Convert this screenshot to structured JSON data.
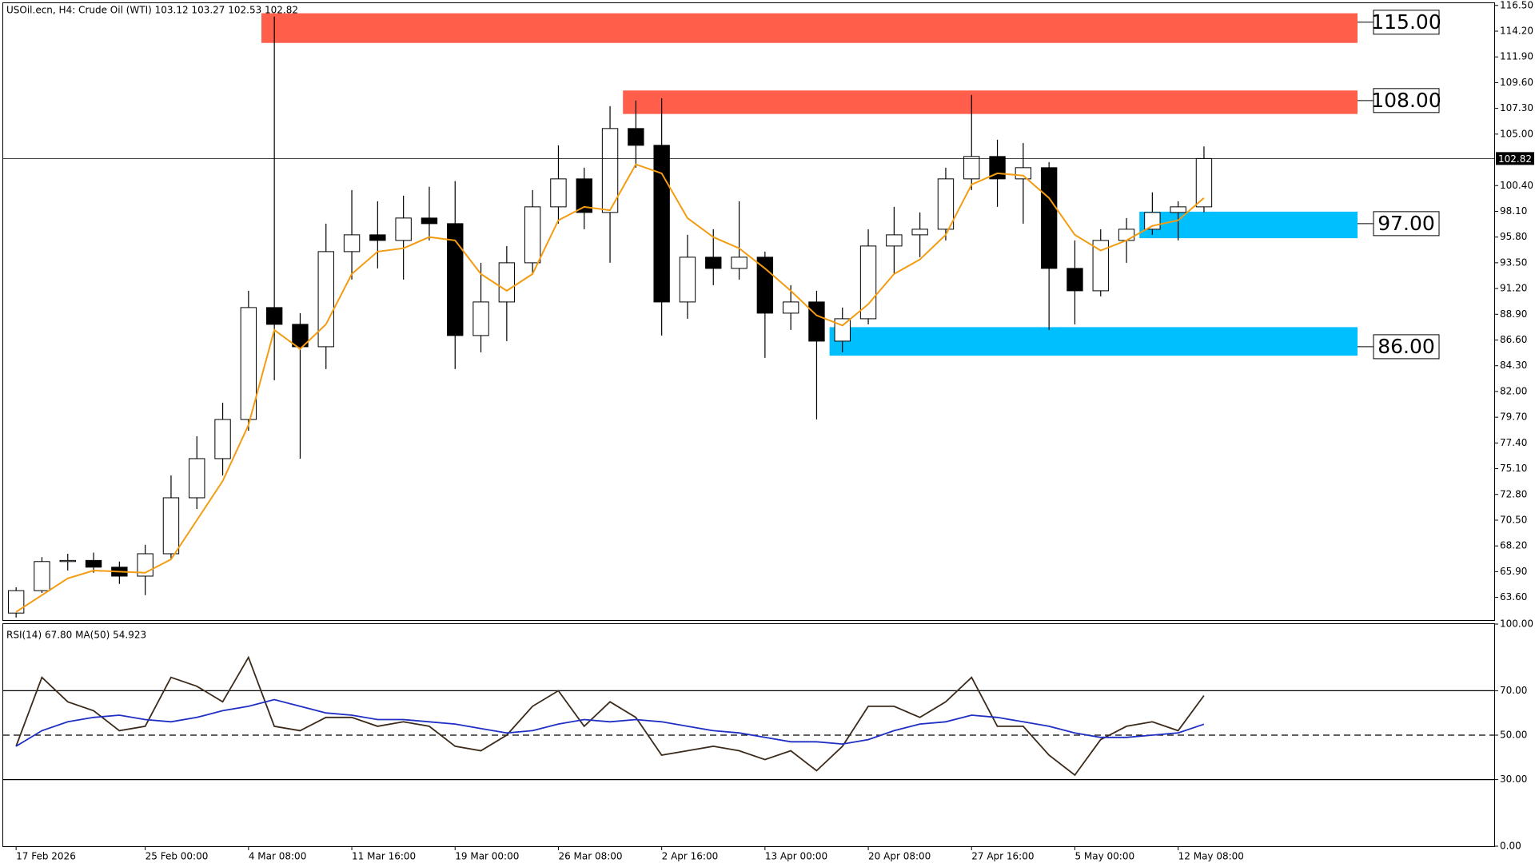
{
  "chart_data": [
    {
      "type": "candlestick",
      "title": "USOil.ecn, H4:  Crude Oil (WTI)  103.12 103.27 102.53 102.82",
      "categories": [
        "17 Feb 2026",
        null,
        null,
        null,
        null,
        "25 Feb 00:00",
        null,
        null,
        null,
        "4 Mar 08:00",
        null,
        null,
        null,
        "11 Mar 16:00",
        null,
        null,
        null,
        "19 Mar 00:00",
        null,
        null,
        null,
        "26 Mar 08:00",
        null,
        null,
        null,
        "2 Apr 16:00",
        null,
        null,
        null,
        "13 Apr 00:00",
        null,
        null,
        null,
        "20 Apr 08:00",
        null,
        null,
        null,
        "27 Apr 16:00",
        null,
        null,
        null,
        "5 May 00:00",
        null,
        null,
        null,
        "12 May 08:00",
        null
      ],
      "open": [
        62.2,
        64.2,
        66.8,
        66.9,
        66.3,
        65.5,
        67.5,
        72.5,
        76,
        79.5,
        89.5,
        88,
        86,
        94.5,
        96,
        95.5,
        97.5,
        97,
        87,
        90,
        93.5,
        98.5,
        101,
        98,
        105.5,
        104,
        90,
        94,
        93,
        94,
        89,
        90,
        86.5,
        88.5,
        95,
        96,
        96.5,
        101,
        103,
        101,
        102,
        93,
        91,
        95.5,
        96.5,
        98,
        98.5
      ],
      "high": [
        64.5,
        67.2,
        67.5,
        67.6,
        66.8,
        68.3,
        74.5,
        78,
        81,
        91,
        115.5,
        89,
        97,
        100,
        99,
        99.5,
        100.3,
        100.8,
        93.5,
        95,
        100,
        104,
        102,
        107.5,
        108,
        108.2,
        96,
        96.5,
        99,
        94.5,
        91.5,
        91,
        89.5,
        96.5,
        98.5,
        98,
        102,
        108.5,
        104.5,
        104.2,
        102.5,
        95.5,
        96.5,
        97.5,
        99.8,
        99,
        103.9
      ],
      "low": [
        61.8,
        64,
        66,
        65.8,
        64.8,
        63.8,
        67,
        71.5,
        74.5,
        78.5,
        83,
        76,
        84,
        92,
        93,
        92,
        95.5,
        84,
        85.5,
        86.5,
        92.5,
        97,
        96.5,
        93.5,
        102,
        87,
        88.5,
        91.5,
        92,
        85,
        87.5,
        79.5,
        85.5,
        88,
        92.5,
        94,
        95.5,
        100,
        98.5,
        97,
        87.5,
        88,
        90.5,
        93.5,
        96,
        95.5,
        98
      ],
      "close": [
        64.2,
        66.8,
        66.9,
        66.3,
        65.5,
        67.5,
        72.5,
        76,
        79.5,
        89.5,
        88,
        86,
        94.5,
        96,
        95.5,
        97.5,
        97,
        87,
        90,
        93.5,
        98.5,
        101,
        98,
        105.5,
        104,
        90,
        94,
        93,
        94,
        89,
        90,
        86.5,
        88.5,
        95,
        96,
        96.5,
        101,
        103,
        101,
        102,
        93,
        91,
        95.5,
        96.5,
        98,
        98.5,
        102.82
      ],
      "up_color": "#ffffff",
      "down_color": "#000000",
      "overlays": [
        {
          "color": "#f39c12",
          "values": [
            62.3,
            63.8,
            65.3,
            66,
            65.9,
            65.8,
            67,
            70.5,
            74,
            79,
            87.5,
            85.8,
            88,
            92.5,
            94.5,
            94.8,
            95.8,
            95.5,
            92.5,
            91,
            92.5,
            97.3,
            98.5,
            98.2,
            102.3,
            101.5,
            97.5,
            95.8,
            94.8,
            93,
            91,
            88.8,
            87.9,
            89.8,
            92.5,
            93.8,
            96,
            100.5,
            101.5,
            101.3,
            99.3,
            96,
            94.6,
            95.5,
            96.8,
            97.3,
            99.3
          ]
        }
      ],
      "zones": [
        {
          "label": "115.00",
          "value": 115,
          "low": 113.15,
          "high": 115.8,
          "start": 10,
          "color": "#ff5e4b"
        },
        {
          "label": "108.00",
          "value": 108,
          "low": 106.8,
          "high": 108.9,
          "start": 24,
          "color": "#ff5e4b"
        },
        {
          "label": "97.00",
          "value": 97,
          "low": 95.7,
          "high": 98.07,
          "start": 44,
          "color": "#00bfff"
        },
        {
          "label": "86.00",
          "value": 86,
          "low": 85.2,
          "high": 87.75,
          "start": 32,
          "color": "#00bfff"
        }
      ],
      "last_price": {
        "value": 102.82,
        "label": "102.82"
      },
      "ylim": [
        61.5,
        116.7
      ],
      "yticks": [
        {
          "value": 63.6,
          "label": "63.60"
        },
        {
          "value": 65.9,
          "label": "65.90"
        },
        {
          "value": 68.2,
          "label": "68.20"
        },
        {
          "value": 70.5,
          "label": "70.50"
        },
        {
          "value": 72.8,
          "label": "72.80"
        },
        {
          "value": 75.1,
          "label": "75.10"
        },
        {
          "value": 77.4,
          "label": "77.40"
        },
        {
          "value": 79.7,
          "label": "79.70"
        },
        {
          "value": 82,
          "label": "82.00"
        },
        {
          "value": 84.3,
          "label": "84.30"
        },
        {
          "value": 86.6,
          "label": "86.60"
        },
        {
          "value": 88.9,
          "label": "88.90"
        },
        {
          "value": 91.2,
          "label": "91.20"
        },
        {
          "value": 93.5,
          "label": "93.50"
        },
        {
          "value": 95.8,
          "label": "95.80"
        },
        {
          "value": 98.1,
          "label": "98.10"
        },
        {
          "value": 100.4,
          "label": "100.40"
        },
        {
          "value": 105,
          "label": "105.00"
        },
        {
          "value": 107.3,
          "label": "107.30"
        },
        {
          "value": 109.6,
          "label": "109.60"
        },
        {
          "value": 111.9,
          "label": "111.90"
        },
        {
          "value": 114.2,
          "label": "114.20"
        },
        {
          "value": 116.5,
          "label": "116.50"
        }
      ],
      "grid": false
    },
    {
      "type": "line",
      "title": "RSI(14) 67.80 MA(50) 54.923",
      "series": [
        {
          "color": "#3b2a1a",
          "values": [
            45,
            76,
            65,
            61,
            52,
            54,
            76,
            72,
            65,
            85,
            54,
            52,
            58,
            58,
            54,
            56,
            54,
            45,
            43,
            50,
            63,
            70,
            54,
            65,
            58,
            41,
            43,
            45,
            43,
            39,
            43,
            34,
            45,
            63,
            63,
            58,
            65,
            76,
            54,
            54,
            41,
            32,
            48,
            54,
            56,
            52,
            67.8
          ]
        },
        {
          "color": "#1f2fc4",
          "values": [
            45,
            52,
            56,
            58,
            59,
            57,
            56,
            58,
            61,
            63,
            66,
            63,
            60,
            59,
            57,
            57,
            56,
            55,
            53,
            51,
            52,
            55,
            57,
            56,
            57,
            56,
            54,
            52,
            51,
            49,
            47,
            47,
            46,
            48,
            52,
            55,
            56,
            59,
            58,
            56,
            54,
            51,
            49,
            49,
            50,
            51,
            54.923
          ]
        }
      ],
      "ylim": [
        0,
        100
      ],
      "yticks": [
        {
          "value": 0,
          "label": "0.00"
        },
        {
          "value": 30,
          "label": "30.00",
          "line": "solid"
        },
        {
          "value": 50,
          "label": "50.00",
          "line": "dashed"
        },
        {
          "value": 70,
          "label": "70.00",
          "line": "solid"
        },
        {
          "value": 100,
          "label": "100.00"
        }
      ],
      "grid": false
    }
  ]
}
